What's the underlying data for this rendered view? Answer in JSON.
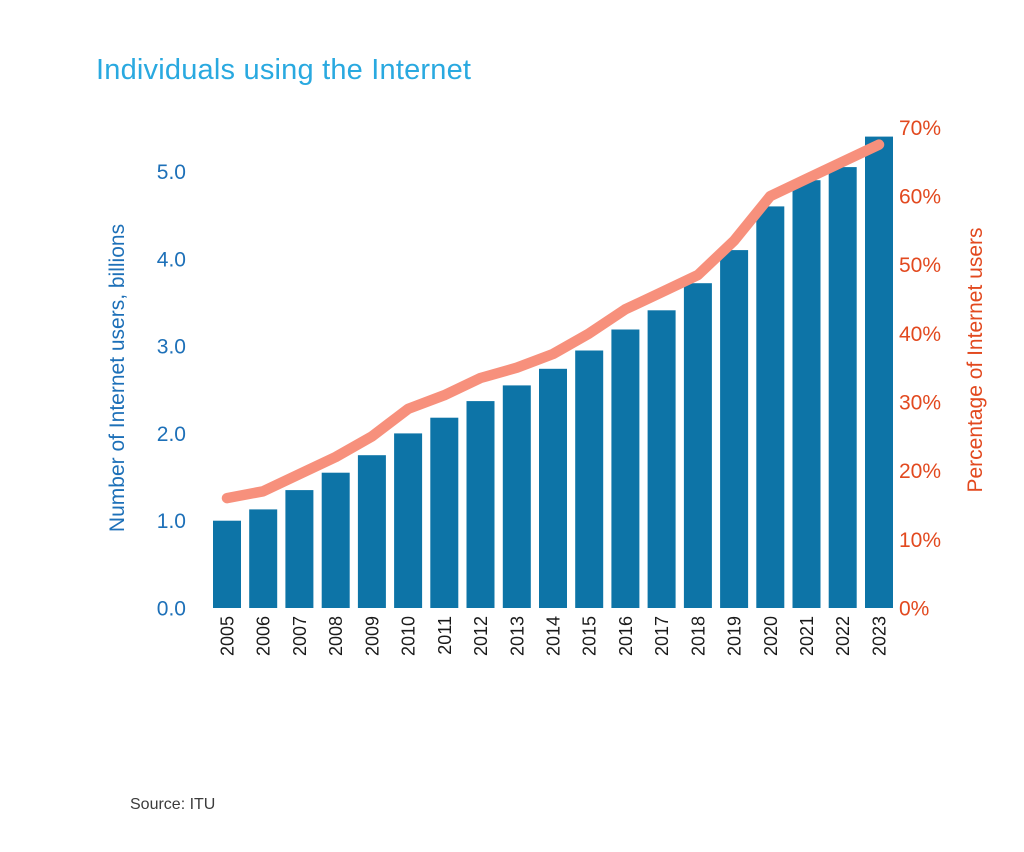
{
  "title": {
    "text": "Individuals using the Internet",
    "color": "#29A9E0"
  },
  "source": {
    "text": "Source: ITU",
    "color": "#3C3C3C"
  },
  "chart_data": {
    "type": "bar",
    "subtype": "bar+line-dual-axis",
    "title": "Individuals using the Internet",
    "categories": [
      "2005",
      "2006",
      "2007",
      "2008",
      "2009",
      "2010",
      "2011",
      "2012",
      "2013",
      "2014",
      "2015",
      "2016",
      "2017",
      "2018",
      "2019",
      "2020",
      "2021",
      "2022",
      "2023"
    ],
    "series": [
      {
        "name": "Number of Internet users, billions",
        "type": "bar",
        "axis": "left",
        "color": "#0D74A7",
        "values": [
          1.0,
          1.13,
          1.35,
          1.55,
          1.75,
          2.0,
          2.18,
          2.37,
          2.55,
          2.74,
          2.95,
          3.19,
          3.41,
          3.72,
          4.1,
          4.6,
          4.9,
          5.05,
          5.4
        ]
      },
      {
        "name": "Percentage of Internet users",
        "type": "line",
        "axis": "right",
        "color": "#F7907C",
        "values": [
          16,
          17,
          19.5,
          22,
          25,
          29,
          31,
          33.5,
          35,
          37,
          40,
          43.5,
          46,
          48.5,
          53.5,
          60,
          62.5,
          65,
          67.5
        ]
      }
    ],
    "left_axis": {
      "label": "Number of Internet users, billions",
      "color": "#1D70B8",
      "min": 0,
      "max": 5,
      "tick_step": 1,
      "ticks": [
        "0.0",
        "1.0",
        "2.0",
        "3.0",
        "4.0",
        "5.0"
      ]
    },
    "right_axis": {
      "label": "Percentage of Internet users",
      "color": "#E2491F",
      "min": 0,
      "max": 70,
      "tick_step": 10,
      "ticks": [
        "0%",
        "10%",
        "20%",
        "30%",
        "40%",
        "50%",
        "60%",
        "70%"
      ]
    },
    "x_axis": {
      "label_color": "#1A1A1A",
      "label_rotation_deg": -90
    },
    "grid": false,
    "legend": false,
    "background": "#FFFFFF"
  }
}
